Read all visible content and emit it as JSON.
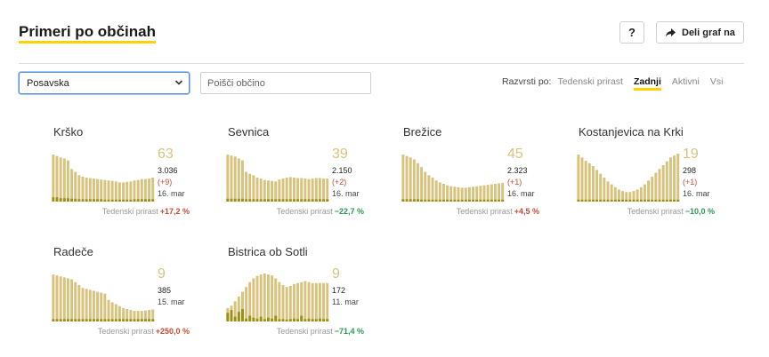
{
  "header": {
    "title": "Primeri po občinah",
    "help_label": "?",
    "share_label": "Deli graf na"
  },
  "controls": {
    "region": "Posavska",
    "search_placeholder": "Poišči občino",
    "sort_label": "Razvrsti po:",
    "sort_options": [
      "Tedenski prirast",
      "Zadnji",
      "Aktivni",
      "Vsi"
    ],
    "active_sort": "Zadnji"
  },
  "colors": {
    "accent": "#ffd200",
    "bar_light": "#d8c37e",
    "bar_dark": "#9c8f12",
    "up": "#c44b37",
    "down": "#2a9a52"
  },
  "weekly_label": "Tedenski prirast",
  "cards": [
    {
      "name": "Krško",
      "active": "63",
      "total": "3.036",
      "change": "(+9)",
      "date": "16. mar",
      "weekly": "+17,2 %",
      "trend": "up",
      "bars": [
        0.98,
        0.95,
        0.92,
        0.9,
        0.86,
        0.68,
        0.62,
        0.55,
        0.52,
        0.5,
        0.49,
        0.48,
        0.47,
        0.46,
        0.45,
        0.44,
        0.43,
        0.42,
        0.4,
        0.4,
        0.41,
        0.42,
        0.44,
        0.45,
        0.47,
        0.47,
        0.48,
        0.5
      ],
      "dark": [
        0.09,
        0.09,
        0.07,
        0.07,
        0.07,
        0.06,
        0.06,
        0.05,
        0.05,
        0.05,
        0.05,
        0.05,
        0.05,
        0.05,
        0.04,
        0.04,
        0.04,
        0.04,
        0.04,
        0.04,
        0.04,
        0.04,
        0.05,
        0.05,
        0.05,
        0.05,
        0.05,
        0.05
      ]
    },
    {
      "name": "Sevnica",
      "active": "39",
      "total": "2.150",
      "change": "(+2)",
      "date": "16. mar",
      "weekly": "−22,7 %",
      "trend": "down",
      "bars": [
        0.98,
        0.96,
        0.94,
        0.9,
        0.86,
        0.62,
        0.58,
        0.55,
        0.5,
        0.48,
        0.45,
        0.44,
        0.43,
        0.42,
        0.46,
        0.48,
        0.5,
        0.51,
        0.5,
        0.49,
        0.49,
        0.48,
        0.47,
        0.48,
        0.49,
        0.49,
        0.48,
        0.48
      ],
      "dark": [
        0.06,
        0.06,
        0.06,
        0.06,
        0.06,
        0.05,
        0.05,
        0.05,
        0.05,
        0.05,
        0.05,
        0.05,
        0.05,
        0.05,
        0.05,
        0.05,
        0.05,
        0.05,
        0.05,
        0.05,
        0.05,
        0.05,
        0.05,
        0.05,
        0.05,
        0.05,
        0.05,
        0.05
      ]
    },
    {
      "name": "Brežice",
      "active": "45",
      "total": "2.323",
      "change": "(+1)",
      "date": "16. mar",
      "weekly": "+4,5 %",
      "trend": "up",
      "bars": [
        0.98,
        0.95,
        0.92,
        0.88,
        0.8,
        0.72,
        0.62,
        0.55,
        0.5,
        0.44,
        0.4,
        0.37,
        0.34,
        0.32,
        0.31,
        0.3,
        0.29,
        0.29,
        0.3,
        0.31,
        0.32,
        0.33,
        0.34,
        0.35,
        0.36,
        0.37,
        0.38,
        0.39
      ],
      "dark": [
        0.05,
        0.05,
        0.05,
        0.05,
        0.05,
        0.04,
        0.04,
        0.04,
        0.04,
        0.04,
        0.04,
        0.04,
        0.04,
        0.04,
        0.04,
        0.04,
        0.04,
        0.04,
        0.04,
        0.04,
        0.04,
        0.04,
        0.04,
        0.04,
        0.04,
        0.04,
        0.04,
        0.04
      ]
    },
    {
      "name": "Kostanjevica na Krki",
      "active": "19",
      "total": "298",
      "change": "(+1)",
      "date": "16. mar",
      "weekly": "−10,0 %",
      "trend": "down",
      "bars": [
        0.98,
        0.92,
        0.85,
        0.8,
        0.74,
        0.66,
        0.58,
        0.5,
        0.42,
        0.36,
        0.3,
        0.25,
        0.22,
        0.2,
        0.2,
        0.22,
        0.25,
        0.3,
        0.36,
        0.44,
        0.52,
        0.6,
        0.68,
        0.76,
        0.84,
        0.92,
        0.96,
        1.0
      ],
      "dark": [
        0.04,
        0.04,
        0.04,
        0.04,
        0.04,
        0.04,
        0.04,
        0.04,
        0.04,
        0.04,
        0.04,
        0.04,
        0.04,
        0.04,
        0.04,
        0.04,
        0.04,
        0.04,
        0.04,
        0.04,
        0.04,
        0.04,
        0.04,
        0.04,
        0.04,
        0.04,
        0.04,
        0.04
      ]
    },
    {
      "name": "Radeče",
      "active": "9",
      "total": "385",
      "change": "",
      "date": "15. mar",
      "weekly": "+250,0 %",
      "trend": "up",
      "bars": [
        0.98,
        0.96,
        0.94,
        0.92,
        0.9,
        0.88,
        0.82,
        0.76,
        0.7,
        0.68,
        0.66,
        0.64,
        0.62,
        0.6,
        0.58,
        0.45,
        0.4,
        0.36,
        0.32,
        0.28,
        0.26,
        0.24,
        0.22,
        0.22,
        0.22,
        0.23,
        0.24,
        0.25
      ],
      "dark": [
        0.05,
        0.05,
        0.05,
        0.05,
        0.05,
        0.05,
        0.05,
        0.05,
        0.05,
        0.05,
        0.05,
        0.05,
        0.05,
        0.05,
        0.05,
        0.05,
        0.05,
        0.05,
        0.05,
        0.05,
        0.05,
        0.05,
        0.05,
        0.05,
        0.05,
        0.05,
        0.05,
        0.05
      ]
    },
    {
      "name": "Bistrica ob Sotli",
      "active": "9",
      "total": "172",
      "change": "",
      "date": "11. mar",
      "weekly": "−71,4 %",
      "trend": "down",
      "bars": [
        0.28,
        0.33,
        0.42,
        0.52,
        0.62,
        0.72,
        0.82,
        0.9,
        0.95,
        0.98,
        1.0,
        0.98,
        0.96,
        0.9,
        0.82,
        0.76,
        0.72,
        0.74,
        0.78,
        0.8,
        0.82,
        0.84,
        0.82,
        0.8,
        0.8,
        0.8,
        0.8,
        0.8
      ],
      "dark": [
        0.18,
        0.24,
        0.1,
        0.2,
        0.26,
        0.06,
        0.12,
        0.08,
        0.06,
        0.1,
        0.05,
        0.08,
        0.06,
        0.12,
        0.05,
        0.05,
        0.04,
        0.05,
        0.06,
        0.05,
        0.12,
        0.05,
        0.06,
        0.05,
        0.05,
        0.06,
        0.05,
        0.05
      ]
    }
  ]
}
